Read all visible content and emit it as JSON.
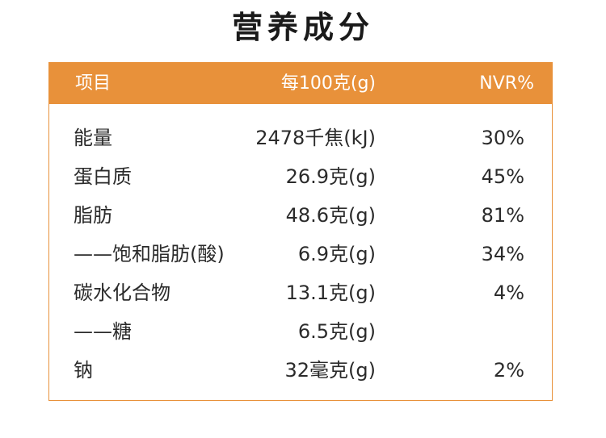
{
  "title": "营养成分",
  "table": {
    "header": {
      "item": "项目",
      "per100": "每100克(g)",
      "nvr": "NVR%"
    },
    "rows": [
      {
        "name": "能量",
        "value": "2478千焦(kJ)",
        "nvr": "30%"
      },
      {
        "name": "蛋白质",
        "value": "26.9克(g)",
        "nvr": "45%"
      },
      {
        "name": "脂肪",
        "value": "48.6克(g)",
        "nvr": "81%"
      },
      {
        "name": "——饱和脂肪(酸)",
        "value": "6.9克(g)",
        "nvr": "34%"
      },
      {
        "name": "碳水化合物",
        "value": "13.1克(g)",
        "nvr": "4%"
      },
      {
        "name": "——糖",
        "value": "6.5克(g)",
        "nvr": ""
      },
      {
        "name": "钠",
        "value": "32毫克(g)",
        "nvr": "2%"
      }
    ]
  },
  "colors": {
    "accent": "#e8913a",
    "header_text": "#ffffff",
    "body_text": "#2b2b2b"
  }
}
